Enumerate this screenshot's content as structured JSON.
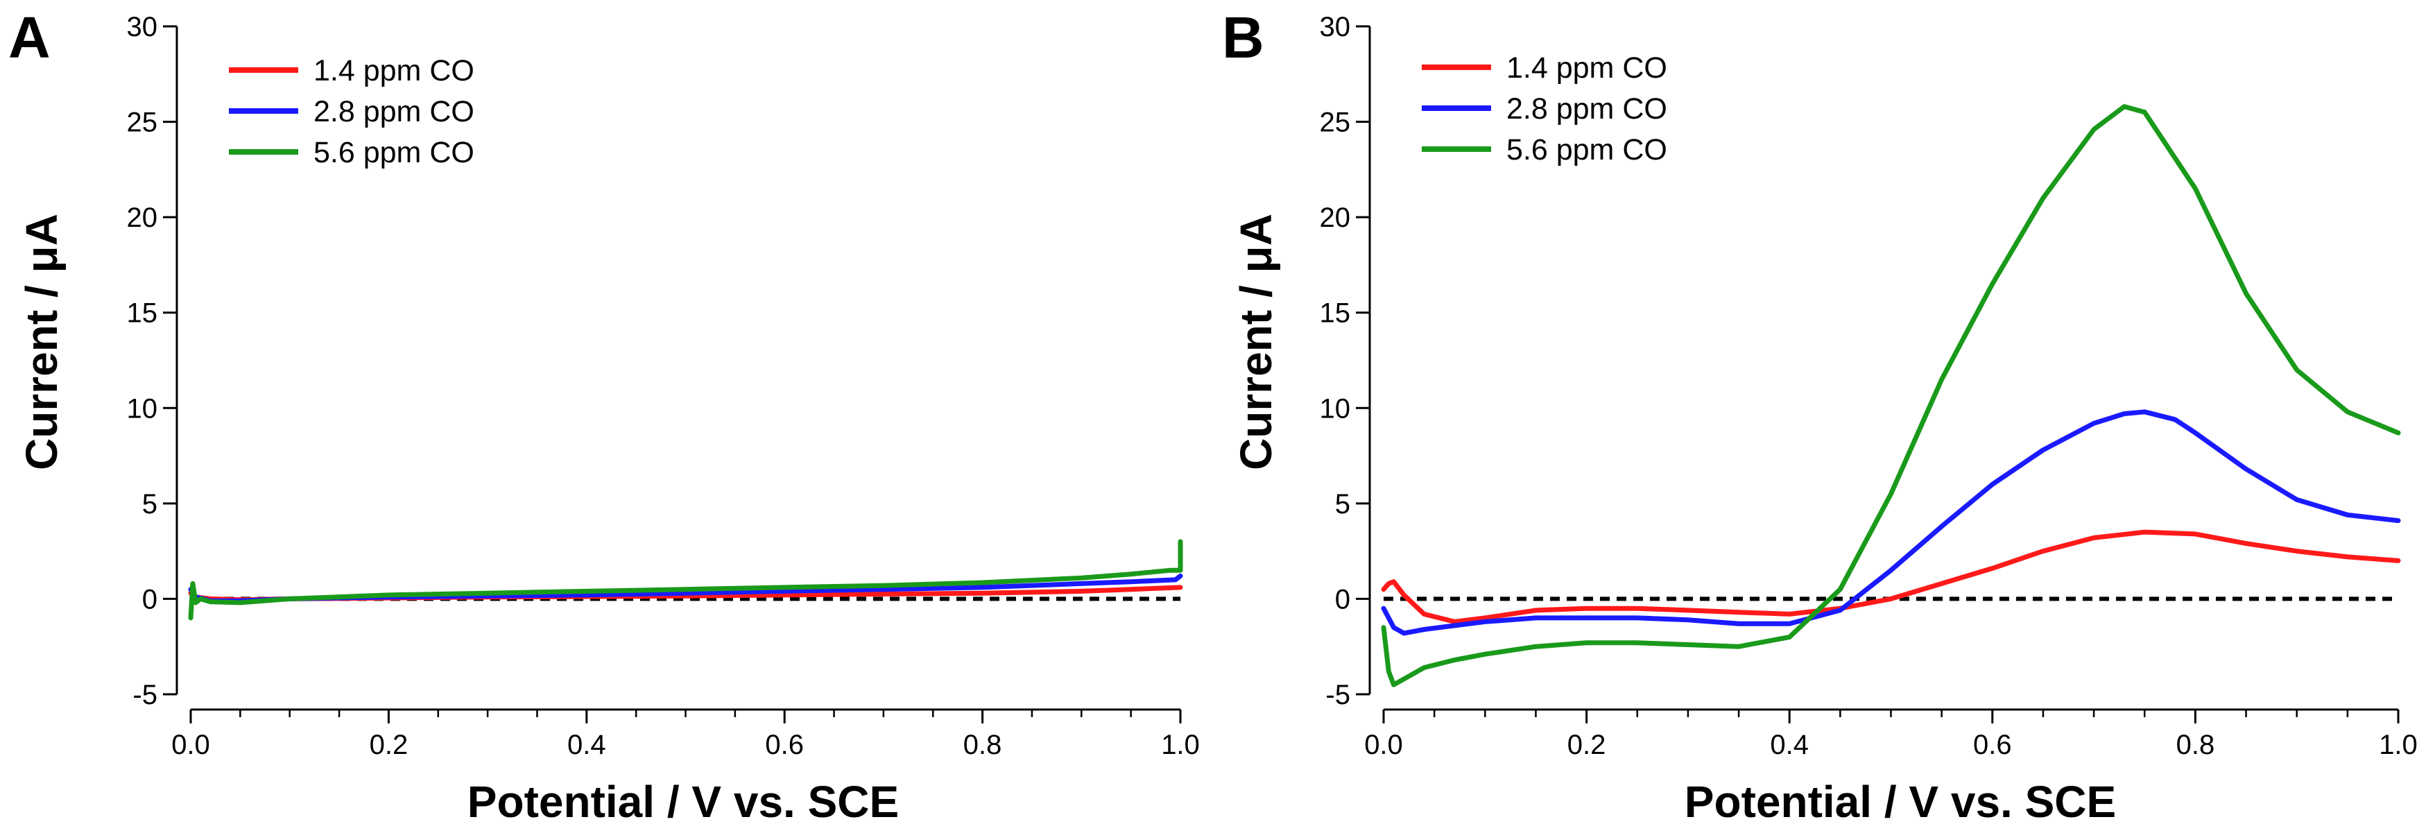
{
  "figure": {
    "colors": {
      "series_1": "#ff1a1a",
      "series_2": "#1a1aff",
      "series_3": "#1a9a1a",
      "baseline": "#000000"
    }
  },
  "chart_data": [
    {
      "type": "line",
      "panel_label": "A",
      "title": "",
      "xlabel": "Potential / V vs. SCE",
      "ylabel": "Current / μA",
      "xlim": [
        0.0,
        1.0
      ],
      "ylim": [
        -5,
        30
      ],
      "xticks": [
        "0.0",
        "0.2",
        "0.4",
        "0.6",
        "0.8",
        "1.0"
      ],
      "yticks": [
        "-5",
        "0",
        "5",
        "10",
        "15",
        "20",
        "25",
        "30"
      ],
      "xtick_values": [
        0.0,
        0.2,
        0.4,
        0.6,
        0.8,
        1.0
      ],
      "ytick_values": [
        -5,
        0,
        5,
        10,
        15,
        20,
        25,
        30
      ],
      "legend_location": "top-left",
      "baseline_y": 0,
      "series": [
        {
          "name": "1.4 ppm CO",
          "color": "#ff1a1a",
          "x": [
            0.0,
            0.005,
            0.02,
            0.05,
            0.1,
            0.2,
            0.3,
            0.4,
            0.5,
            0.6,
            0.7,
            0.8,
            0.9,
            0.95,
            1.0
          ],
          "y": [
            0.3,
            0.1,
            0.0,
            -0.05,
            0.0,
            0.05,
            0.1,
            0.12,
            0.15,
            0.2,
            0.25,
            0.3,
            0.4,
            0.5,
            0.6
          ]
        },
        {
          "name": "2.8 ppm CO",
          "color": "#1a1aff",
          "x": [
            0.0,
            0.005,
            0.02,
            0.05,
            0.1,
            0.2,
            0.3,
            0.4,
            0.5,
            0.6,
            0.7,
            0.8,
            0.9,
            0.95,
            0.995,
            1.0
          ],
          "y": [
            0.5,
            0.1,
            -0.1,
            -0.1,
            0.0,
            0.1,
            0.15,
            0.2,
            0.3,
            0.4,
            0.5,
            0.6,
            0.8,
            0.9,
            1.0,
            1.2
          ]
        },
        {
          "name": "5.6 ppm CO",
          "color": "#1a9a1a",
          "x": [
            0.0,
            0.002,
            0.005,
            0.01,
            0.02,
            0.05,
            0.1,
            0.2,
            0.3,
            0.4,
            0.5,
            0.6,
            0.7,
            0.8,
            0.9,
            0.95,
            0.99,
            0.995,
            1.0,
            1.0
          ],
          "y": [
            -1.0,
            0.8,
            -0.2,
            0.0,
            -0.15,
            -0.2,
            0.0,
            0.2,
            0.3,
            0.4,
            0.5,
            0.6,
            0.7,
            0.85,
            1.1,
            1.3,
            1.5,
            1.5,
            1.5,
            3.0
          ]
        }
      ]
    },
    {
      "type": "line",
      "panel_label": "B",
      "title": "",
      "xlabel": "Potential / V vs. SCE",
      "ylabel": "Current / μA",
      "xlim": [
        0.0,
        1.0
      ],
      "ylim": [
        -5,
        30
      ],
      "xticks": [
        "0.0",
        "0.2",
        "0.4",
        "0.6",
        "0.8",
        "1.0"
      ],
      "yticks": [
        "-5",
        "0",
        "5",
        "10",
        "15",
        "20",
        "25",
        "30"
      ],
      "xtick_values": [
        0.0,
        0.2,
        0.4,
        0.6,
        0.8,
        1.0
      ],
      "ytick_values": [
        -5,
        0,
        5,
        10,
        15,
        20,
        25,
        30
      ],
      "legend_location": "top-left",
      "baseline_y": 0,
      "series": [
        {
          "name": "1.4 ppm CO",
          "color": "#ff1a1a",
          "x": [
            0.0,
            0.005,
            0.01,
            0.02,
            0.04,
            0.07,
            0.1,
            0.15,
            0.2,
            0.25,
            0.3,
            0.35,
            0.4,
            0.45,
            0.5,
            0.55,
            0.6,
            0.65,
            0.7,
            0.75,
            0.8,
            0.85,
            0.9,
            0.95,
            1.0
          ],
          "y": [
            0.5,
            0.8,
            0.9,
            0.2,
            -0.8,
            -1.2,
            -1.0,
            -0.6,
            -0.5,
            -0.5,
            -0.6,
            -0.7,
            -0.8,
            -0.5,
            0.0,
            0.8,
            1.6,
            2.5,
            3.2,
            3.5,
            3.4,
            2.9,
            2.5,
            2.2,
            2.0
          ]
        },
        {
          "name": "2.8 ppm CO",
          "color": "#1a1aff",
          "x": [
            0.0,
            0.005,
            0.01,
            0.02,
            0.04,
            0.07,
            0.1,
            0.15,
            0.2,
            0.25,
            0.3,
            0.35,
            0.4,
            0.45,
            0.5,
            0.55,
            0.6,
            0.65,
            0.7,
            0.73,
            0.75,
            0.78,
            0.8,
            0.85,
            0.9,
            0.95,
            1.0
          ],
          "y": [
            -0.5,
            -1.0,
            -1.5,
            -1.8,
            -1.6,
            -1.4,
            -1.2,
            -1.0,
            -1.0,
            -1.0,
            -1.1,
            -1.3,
            -1.3,
            -0.6,
            1.5,
            3.8,
            6.0,
            7.8,
            9.2,
            9.7,
            9.8,
            9.4,
            8.7,
            6.8,
            5.2,
            4.4,
            4.1
          ]
        },
        {
          "name": "5.6 ppm CO",
          "color": "#1a9a1a",
          "x": [
            0.0,
            0.005,
            0.01,
            0.02,
            0.04,
            0.07,
            0.1,
            0.15,
            0.2,
            0.25,
            0.3,
            0.35,
            0.4,
            0.45,
            0.5,
            0.55,
            0.6,
            0.65,
            0.7,
            0.73,
            0.75,
            0.8,
            0.85,
            0.9,
            0.95,
            1.0
          ],
          "y": [
            -1.5,
            -3.8,
            -4.5,
            -4.2,
            -3.6,
            -3.2,
            -2.9,
            -2.5,
            -2.3,
            -2.3,
            -2.4,
            -2.5,
            -2.0,
            0.5,
            5.5,
            11.5,
            16.5,
            21.0,
            24.6,
            25.8,
            25.5,
            21.5,
            16.0,
            12.0,
            9.8,
            8.7
          ]
        }
      ]
    }
  ]
}
